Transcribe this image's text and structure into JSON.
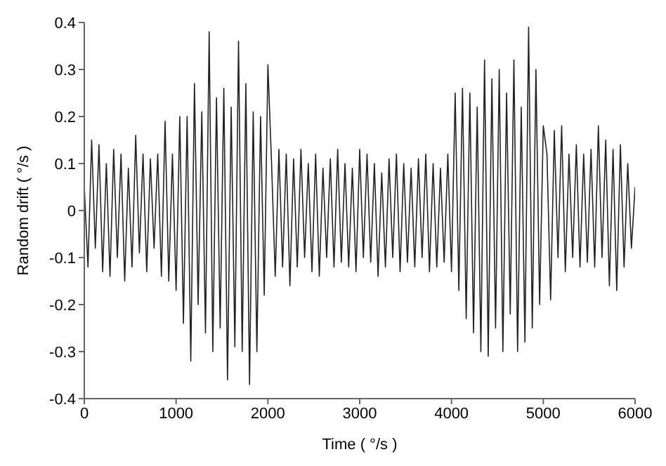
{
  "chart_data": {
    "type": "line",
    "xlabel": "Time ( °/s )",
    "ylabel": "Random drift ( °/s )",
    "x": [
      0,
      40,
      80,
      120,
      160,
      200,
      240,
      280,
      320,
      360,
      400,
      440,
      480,
      520,
      560,
      600,
      640,
      680,
      720,
      760,
      800,
      840,
      880,
      920,
      960,
      1000,
      1040,
      1080,
      1120,
      1160,
      1200,
      1240,
      1280,
      1320,
      1360,
      1400,
      1440,
      1480,
      1520,
      1560,
      1600,
      1640,
      1680,
      1720,
      1760,
      1800,
      1840,
      1880,
      1920,
      1960,
      2000,
      2040,
      2080,
      2120,
      2160,
      2200,
      2240,
      2280,
      2320,
      2360,
      2400,
      2440,
      2480,
      2520,
      2560,
      2600,
      2640,
      2680,
      2720,
      2760,
      2800,
      2840,
      2880,
      2920,
      2960,
      3000,
      3040,
      3080,
      3120,
      3160,
      3200,
      3240,
      3280,
      3320,
      3360,
      3400,
      3440,
      3480,
      3520,
      3560,
      3600,
      3640,
      3680,
      3720,
      3760,
      3800,
      3840,
      3880,
      3920,
      3960,
      4000,
      4040,
      4080,
      4120,
      4160,
      4200,
      4240,
      4280,
      4320,
      4360,
      4400,
      4440,
      4480,
      4520,
      4560,
      4600,
      4640,
      4680,
      4720,
      4760,
      4800,
      4840,
      4880,
      4920,
      4960,
      5000,
      5040,
      5080,
      5120,
      5160,
      5200,
      5240,
      5280,
      5320,
      5360,
      5400,
      5440,
      5480,
      5520,
      5560,
      5600,
      5640,
      5680,
      5720,
      5760,
      5800,
      5840,
      5880,
      5920,
      5960,
      6000
    ],
    "series": [
      {
        "color": "#222222",
        "values": [
          0.05,
          -0.12,
          0.15,
          -0.08,
          0.14,
          -0.13,
          0.1,
          -0.14,
          0.13,
          -0.1,
          0.12,
          -0.15,
          0.09,
          -0.12,
          0.16,
          -0.09,
          0.12,
          -0.13,
          0.11,
          -0.08,
          0.12,
          -0.14,
          0.19,
          -0.15,
          0.12,
          -0.17,
          0.2,
          -0.24,
          0.2,
          -0.32,
          0.27,
          -0.2,
          0.21,
          -0.26,
          0.38,
          -0.3,
          0.24,
          -0.25,
          0.26,
          -0.36,
          0.22,
          -0.29,
          0.36,
          -0.3,
          0.27,
          -0.37,
          0.21,
          -0.3,
          0.2,
          -0.18,
          0.31,
          0.1,
          -0.14,
          0.13,
          -0.12,
          0.12,
          -0.16,
          0.11,
          -0.12,
          0.13,
          -0.1,
          0.1,
          -0.13,
          0.12,
          -0.14,
          0.09,
          -0.1,
          0.11,
          -0.12,
          0.13,
          -0.11,
          0.1,
          -0.12,
          0.09,
          -0.13,
          0.13,
          -0.1,
          0.12,
          -0.11,
          0.1,
          -0.14,
          0.08,
          -0.12,
          0.11,
          -0.1,
          0.12,
          -0.13,
          0.1,
          -0.11,
          0.09,
          -0.12,
          0.11,
          -0.1,
          0.12,
          -0.13,
          0.1,
          -0.12,
          0.09,
          -0.11,
          0.12,
          -0.13,
          0.25,
          -0.17,
          0.26,
          -0.23,
          0.25,
          -0.26,
          0.22,
          -0.3,
          0.32,
          -0.31,
          0.28,
          -0.25,
          0.3,
          -0.3,
          0.25,
          -0.22,
          0.32,
          -0.3,
          0.22,
          -0.28,
          0.39,
          -0.25,
          0.3,
          -0.2,
          0.18,
          0.12,
          -0.19,
          0.17,
          -0.1,
          0.18,
          -0.13,
          0.12,
          -0.1,
          0.14,
          -0.12,
          0.12,
          -0.11,
          0.13,
          -0.12,
          0.18,
          -0.1,
          0.15,
          -0.16,
          0.13,
          -0.17,
          0.14,
          -0.12,
          0.1,
          -0.08,
          0.05
        ]
      }
    ],
    "xlim": [
      0,
      6000
    ],
    "xticks": [
      0,
      1000,
      2000,
      3000,
      4000,
      5000,
      6000
    ],
    "ylim": [
      -0.4,
      0.4
    ],
    "yticks": [
      -0.4,
      -0.3,
      -0.2,
      -0.1,
      0,
      0.1,
      0.2,
      0.3,
      0.4
    ]
  }
}
